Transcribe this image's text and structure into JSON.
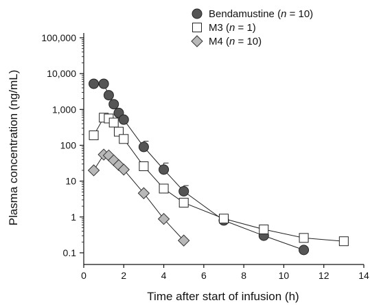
{
  "chart_data": {
    "type": "scatter",
    "xlabel": "Time after start of infusion (h)",
    "ylabel": "Plasma concentration (ng/mL)",
    "xlim": [
      0,
      14
    ],
    "ylim": [
      0.05,
      100000
    ],
    "yscale": "log",
    "x_ticks": [
      0,
      2,
      4,
      6,
      8,
      10,
      12,
      14
    ],
    "x_tick_labels": [
      "0",
      "2",
      "4",
      "6",
      "8",
      "10",
      "12",
      "14"
    ],
    "y_ticks": [
      0.1,
      1,
      10,
      100,
      1000,
      10000,
      100000
    ],
    "y_tick_labels": [
      "0.1",
      "1",
      "10",
      "100",
      "1,000",
      "10,000",
      "100,000"
    ],
    "grid": false,
    "legend_position": "top-right",
    "series": [
      {
        "name": "Bendamustine",
        "legend_label": {
          "main": "Bendamustine (",
          "n": "n",
          "rest": " = 10)"
        },
        "marker": "circle",
        "fill": "#555555",
        "x": [
          0.5,
          1.0,
          1.25,
          1.5,
          1.75,
          2.0,
          3.0,
          4.0,
          5.0,
          7.0,
          9.0,
          11.0
        ],
        "y": [
          5200,
          5200,
          2500,
          1400,
          800,
          520,
          90,
          21,
          5.2,
          0.8,
          0.3,
          0.12
        ],
        "error_upper": [
          null,
          null,
          null,
          null,
          null,
          null,
          130,
          32,
          7.5,
          null,
          null,
          null
        ]
      },
      {
        "name": "M3",
        "legend_label": {
          "main": "M3 (",
          "n": "n",
          "rest": " = 1)"
        },
        "marker": "square",
        "fill": "#ffffff",
        "x": [
          0.5,
          1.0,
          1.25,
          1.5,
          1.75,
          2.0,
          3.0,
          4.0,
          5.0,
          7.0,
          9.0,
          11.0,
          13.0
        ],
        "y": [
          190,
          590,
          560,
          430,
          240,
          150,
          26,
          6.2,
          2.5,
          0.9,
          0.45,
          0.26,
          0.21
        ]
      },
      {
        "name": "M4",
        "legend_label": {
          "main": "M4 (",
          "n": "n",
          "rest": " = 10)"
        },
        "marker": "diamond",
        "fill": "#b8b8b8",
        "x": [
          0.5,
          1.0,
          1.25,
          1.5,
          1.75,
          2.0,
          3.0,
          4.0,
          5.0
        ],
        "y": [
          20,
          55,
          52,
          38,
          28,
          21,
          4.6,
          0.88,
          0.22
        ]
      }
    ]
  }
}
